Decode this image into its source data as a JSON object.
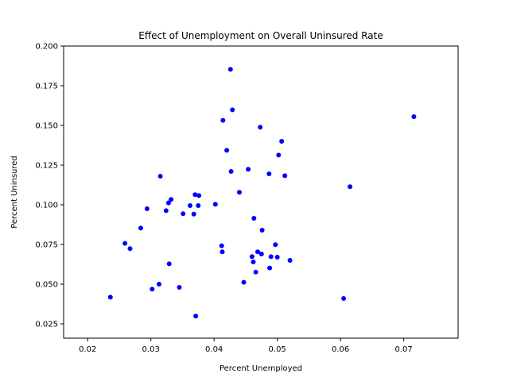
{
  "chart_data": {
    "type": "scatter",
    "title": "Effect of Unemployment on Overall Uninsured Rate",
    "xlabel": "Percent Unemployed",
    "ylabel": "Percent Uninsured",
    "xlim": [
      0.0162,
      0.0786
    ],
    "ylim": [
      0.016,
      0.2
    ],
    "xticks": [
      "0.02",
      "0.03",
      "0.04",
      "0.05",
      "0.06",
      "0.07"
    ],
    "xtick_values": [
      0.02,
      0.03,
      0.04,
      0.05,
      0.06,
      0.07
    ],
    "yticks": [
      "0.025",
      "0.050",
      "0.075",
      "0.100",
      "0.125",
      "0.150",
      "0.175",
      "0.200"
    ],
    "ytick_values": [
      0.025,
      0.05,
      0.075,
      0.1,
      0.125,
      0.15,
      0.175,
      0.2
    ],
    "grid": false,
    "legend": "none",
    "marker_color": "#0000ff",
    "series": [
      {
        "points": [
          [
            0.0236,
            0.0418
          ],
          [
            0.0259,
            0.0757
          ],
          [
            0.0267,
            0.0724
          ],
          [
            0.0284,
            0.0853
          ],
          [
            0.0294,
            0.0975
          ],
          [
            0.0302,
            0.0469
          ],
          [
            0.0313,
            0.05
          ],
          [
            0.0315,
            0.118
          ],
          [
            0.0324,
            0.0963
          ],
          [
            0.0328,
            0.1012
          ],
          [
            0.0329,
            0.0628
          ],
          [
            0.0332,
            0.1034
          ],
          [
            0.0345,
            0.048
          ],
          [
            0.0351,
            0.0944
          ],
          [
            0.0362,
            0.0995
          ],
          [
            0.0368,
            0.0941
          ],
          [
            0.037,
            0.1064
          ],
          [
            0.0371,
            0.0299
          ],
          [
            0.0375,
            0.0995
          ],
          [
            0.0376,
            0.1058
          ],
          [
            0.0402,
            0.1003
          ],
          [
            0.0412,
            0.0742
          ],
          [
            0.0413,
            0.0704
          ],
          [
            0.0414,
            0.1532
          ],
          [
            0.042,
            0.1343
          ],
          [
            0.0426,
            0.1853
          ],
          [
            0.0427,
            0.121
          ],
          [
            0.0429,
            0.1598
          ],
          [
            0.044,
            0.1079
          ],
          [
            0.0447,
            0.0512
          ],
          [
            0.0454,
            0.1224
          ],
          [
            0.046,
            0.0674
          ],
          [
            0.0462,
            0.064
          ],
          [
            0.0463,
            0.0915
          ],
          [
            0.0466,
            0.0576
          ],
          [
            0.0469,
            0.0704
          ],
          [
            0.0473,
            0.1489
          ],
          [
            0.0475,
            0.069
          ],
          [
            0.0476,
            0.084
          ],
          [
            0.0487,
            0.1195
          ],
          [
            0.0488,
            0.0602
          ],
          [
            0.049,
            0.0673
          ],
          [
            0.0497,
            0.0749
          ],
          [
            0.05,
            0.067
          ],
          [
            0.0502,
            0.1313
          ],
          [
            0.0507,
            0.14
          ],
          [
            0.0512,
            0.1183
          ],
          [
            0.052,
            0.065
          ],
          [
            0.0605,
            0.041
          ],
          [
            0.0615,
            0.1114
          ],
          [
            0.0716,
            0.1555
          ]
        ]
      }
    ]
  }
}
